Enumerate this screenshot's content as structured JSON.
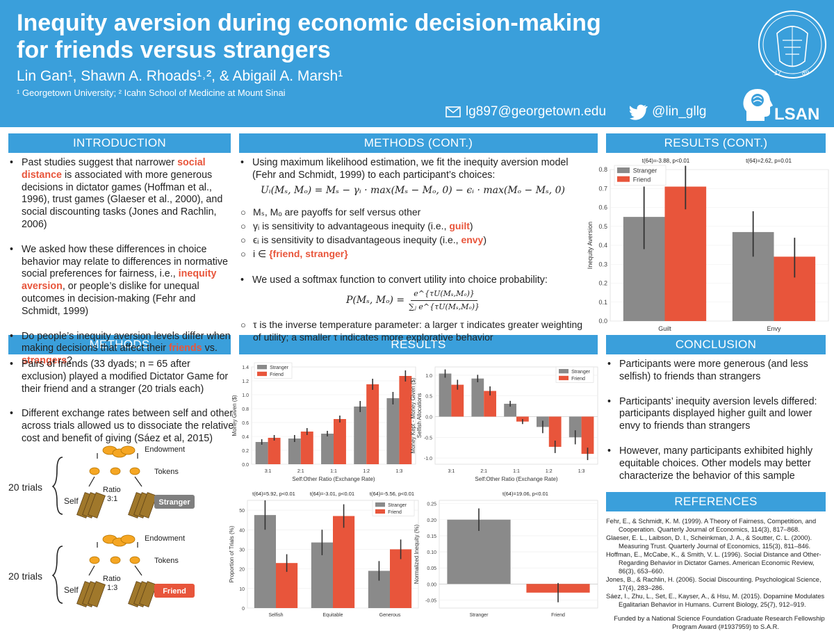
{
  "header": {
    "title_line1": "Inequity aversion during economic decision-making",
    "title_line2": "for friends versus strangers",
    "authors": "Lin Gan¹, Shawn A. Rhoads¹˒², & Abigail A. Marsh¹",
    "affiliations": "¹ Georgetown University; ² Icahn School of Medicine at Mount Sinai",
    "email": "lg897@georgetown.edu",
    "twitter": "@lin_gllg",
    "lab_logo": "LSAN",
    "seal_years": [
      "17",
      "89"
    ],
    "accent": "#3a9fdb"
  },
  "sections": {
    "introduction": "INTRODUCTION",
    "methods_cont": "METHODS (CONT.)",
    "results_cont": "RESULTS (CONT.)",
    "methods": "METHODS",
    "results": "RESULTS",
    "conclusion": "CONCLUSION",
    "references": "REFERENCES"
  },
  "introduction": {
    "b1_pre": "Past studies suggest that narrower ",
    "b1_hl": "social distance",
    "b1_post": " is associated with more generous decisions in dictator games (Hoffman et al., 1996), trust games (Glaeser et al., 2000), and social discounting tasks (Jones and Rachlin, 2006)",
    "b2_pre": "We asked how these differences in choice behavior may relate to differences in normative social preferences for fairness, i.e., ",
    "b2_hl": "inequity aversion",
    "b2_post": ", or people’s dislike for unequal outcomes in decision-making (Fehr and Schmidt, 1999)",
    "b3_pre": "Do people’s inequity aversion levels differ when making decisions that affect their ",
    "b3_hl1": "friends",
    "b3_mid": " vs. ",
    "b3_hl2": "strangers",
    "b3_post": "?"
  },
  "methods_cont": {
    "b1": "Using maximum likelihood estimation, we fit the inequity aversion model (Fehr and Schmidt, 1999) to each participant’s choices:",
    "eq1": "Uᵢ(Mₛ, Mₒ) = Mₛ − γᵢ · max(Mₛ − Mₒ, 0) − ϵᵢ · max(Mₒ − Mₛ, 0)",
    "s1": "Mₛ, Mₒ are payoffs for self versus other",
    "s2_pre": "γᵢ is sensitivity to advantageous inequity (i.e., ",
    "s2_hl": "guilt",
    "s2_post": ")",
    "s3_pre": "ϵᵢ is sensitivity to disadvantageous inequity (i.e., ",
    "s3_hl": "envy",
    "s3_post": ")",
    "s4_pre": "i ∈ ",
    "s4_hl": "{friend, stranger}",
    "b2": "We used a softmax function to convert utility into choice probability:",
    "eq2_lhs": "P(Mₛ, Mₒ) =",
    "eq2_num": "e^{τU(Mₛ,Mₒ)}",
    "eq2_den": "∑ⱼ e^{τU(Mₛ,Mₒ)}",
    "s5": "τ is the inverse temperature parameter: a larger τ indicates greater weighting of utility; a smaller τ indicates more explorative behavior"
  },
  "methods": {
    "b1": "Pairs of friends (33 dyads; n = 65 after exclusion) played a modified Dictator Game for their friend and a stranger (20 trials each)",
    "b2": "Different exchange rates between self and other across trials allowed us to dissociate the relative cost and benefit of giving (Sáez et al, 2015)",
    "diagram1": {
      "trials": "20 trials",
      "endowment": "Endowment",
      "tokens": "Tokens",
      "ratio": "Ratio",
      "ratio_val": "3:1",
      "self": "Self",
      "target": "Stranger",
      "target_color": "#7f7f7f"
    },
    "diagram2": {
      "trials": "20 trials",
      "endowment": "Endowment",
      "tokens": "Tokens",
      "ratio": "Ratio",
      "ratio_val": "1:3",
      "self": "Self",
      "target": "Friend",
      "target_color": "#e8553b"
    }
  },
  "conclusion": {
    "b1": "Participants were more generous (and less selfish) to friends than strangers",
    "b2": "Participants’ inequity aversion levels differed: participants displayed higher guilt and lower envy to friends than strangers",
    "b3": "However, many participants exhibited highly equitable choices. Other models may better characterize the behavior of this sample"
  },
  "references": {
    "r1": "Fehr, E., & Schmidt, K. M. (1999). A Theory of Fairness, Competition, and Cooperation. Quarterly Journal of Economics, 114(3), 817–868.",
    "r2": "Glaeser, E. L., Laibson, D. I., Scheinkman, J. A., & Soutter, C. L. (2000). Measuring Trust. Quarterly Journal of Economics, 115(3), 811–846.",
    "r3": "Hoffman, E., McCabe, K., & Smith, V. L. (1996). Social Distance and Other-Regarding Behavior in Dictator Games. American Economic Review, 86(3), 653–660.",
    "r4": "Jones, B., & Rachlin, H. (2006). Social Discounting. Psychological Science, 17(4), 283–286.",
    "r5": "Sáez, I., Zhu, L., Set, E., Kayser, A., & Hsu, M. (2015). Dopamine Modulates Egalitarian Behavior in Humans. Current Biology, 25(7), 912–919.",
    "funded": "Funded by a National Science Foundation Graduate Research Fellowship Program Award (#1937959) to S.A.R."
  },
  "colors": {
    "stranger": "#8a8a8a",
    "friend": "#e8553b"
  },
  "chart_data": [
    {
      "id": "inequity_aversion",
      "type": "bar",
      "categories": [
        "Guilt",
        "Envy"
      ],
      "series": [
        {
          "name": "Stranger",
          "values": [
            0.55,
            0.47
          ],
          "err_low": [
            0.38,
            0.34
          ],
          "err_high": [
            0.71,
            0.58
          ]
        },
        {
          "name": "Friend",
          "values": [
            0.71,
            0.34
          ],
          "err_low": [
            0.59,
            0.23
          ],
          "err_high": [
            0.82,
            0.44
          ]
        }
      ],
      "ylabel": "Inequity Aversion",
      "ylim": [
        0,
        0.8
      ],
      "yticks": [
        0.0,
        0.1,
        0.2,
        0.3,
        0.4,
        0.5,
        0.6,
        0.7,
        0.8
      ],
      "annotations": [
        "t(64)=-3.88, p<0.01",
        "t(64)=2.62, p=0.01"
      ]
    },
    {
      "id": "money_given",
      "type": "bar",
      "categories": [
        "3:1",
        "2:1",
        "1:1",
        "1:2",
        "1:3"
      ],
      "series": [
        {
          "name": "Stranger",
          "values": [
            0.32,
            0.37,
            0.44,
            0.83,
            0.95
          ],
          "err": [
            0.04,
            0.05,
            0.04,
            0.08,
            0.09
          ]
        },
        {
          "name": "Friend",
          "values": [
            0.38,
            0.47,
            0.65,
            1.15,
            1.27
          ],
          "err": [
            0.04,
            0.05,
            0.05,
            0.08,
            0.08
          ]
        }
      ],
      "xlabel": "Self:Other Ratio (Exchange Rate)",
      "ylabel": "Money Given ($)",
      "ylim": [
        0,
        1.4
      ],
      "yticks": [
        0.0,
        0.2,
        0.4,
        0.6,
        0.8,
        1.0,
        1.2,
        1.4
      ]
    },
    {
      "id": "selfish_allocations",
      "type": "bar",
      "categories": [
        "3:1",
        "2:1",
        "1:1",
        "1:2",
        "1:3"
      ],
      "series": [
        {
          "name": "Stranger",
          "values": [
            1.04,
            0.92,
            0.31,
            -0.25,
            -0.5
          ],
          "err": [
            0.1,
            0.09,
            0.07,
            0.15,
            0.17
          ]
        },
        {
          "name": "Friend",
          "values": [
            0.77,
            0.62,
            -0.12,
            -0.73,
            -0.9
          ],
          "err": [
            0.12,
            0.11,
            0.06,
            0.15,
            0.15
          ]
        }
      ],
      "xlabel": "Self:Other Ratio (Exchange Rate)",
      "ylabel": "Money Kept - Money Given ($)",
      "ylabel2": "Selfish Allocations",
      "ylim": [
        -1.15,
        1.2
      ],
      "yticks": [
        -1.0,
        -0.5,
        0.0,
        0.5,
        1.0
      ]
    },
    {
      "id": "proportion_trials",
      "type": "bar",
      "categories": [
        "Selfish",
        "Equitable",
        "Generous"
      ],
      "series": [
        {
          "name": "Stranger",
          "values": [
            47.5,
            33.5,
            19
          ],
          "err": [
            7.5,
            6.5,
            5
          ]
        },
        {
          "name": "Friend",
          "values": [
            23,
            47,
            30
          ],
          "err": [
            4.5,
            6,
            5
          ]
        }
      ],
      "ylabel": "Proportion of Trials (%)",
      "ylim": [
        0,
        55
      ],
      "yticks": [
        0,
        10,
        20,
        30,
        40,
        50
      ],
      "annotations": [
        "t(64)=5.92, p<0.01",
        "t(64)=-3.01, p<0.01",
        "t(64)=-5.56, p<0.01"
      ]
    },
    {
      "id": "normalized_inequity",
      "type": "bar",
      "categories": [
        "Stranger",
        "Friend"
      ],
      "series": [
        {
          "name": "Normalized Inequity",
          "values": [
            0.2,
            -0.027
          ],
          "err": [
            0.035,
            0.03
          ]
        }
      ],
      "ylabel": "Normalized Inequity (%)",
      "ylim": [
        -0.075,
        0.26
      ],
      "yticks": [
        -0.05,
        0.0,
        0.05,
        0.1,
        0.15,
        0.2,
        0.25
      ],
      "annotations": [
        "t(64)=19.06, p<0.01"
      ]
    }
  ]
}
